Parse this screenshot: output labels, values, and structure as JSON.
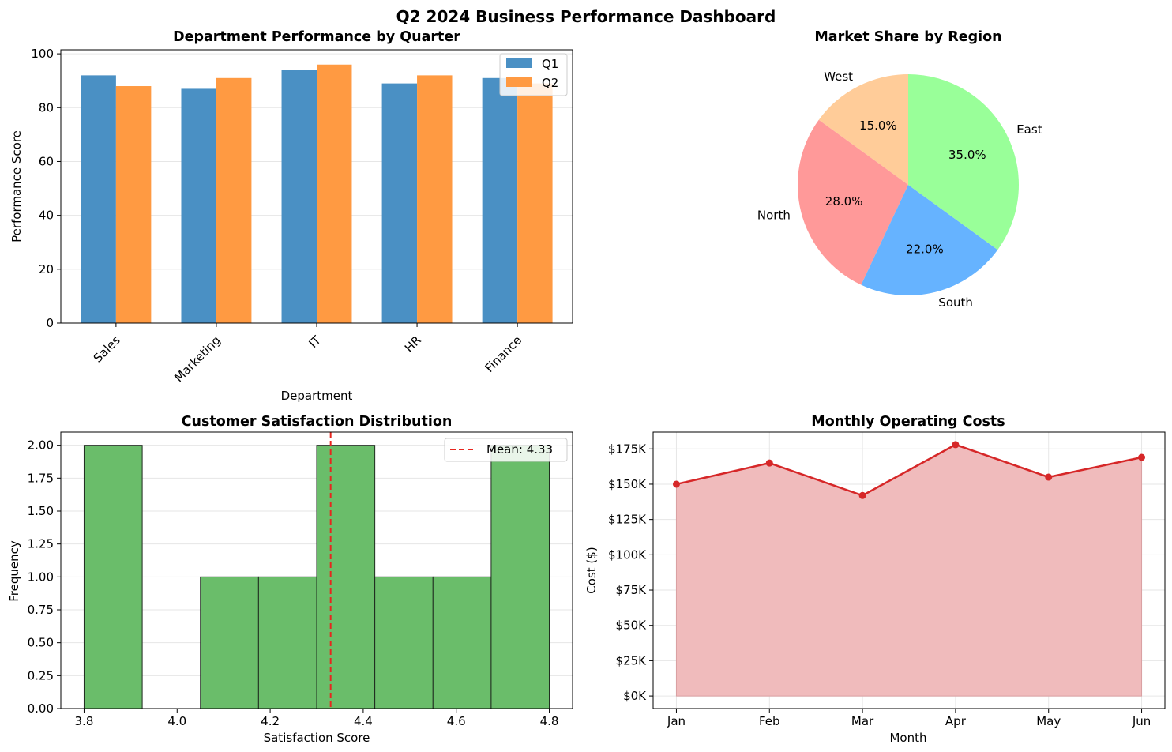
{
  "dashboard": {
    "title": "Q2 2024 Business Performance Dashboard"
  },
  "chart_data": [
    {
      "type": "bar",
      "title": "Department Performance by Quarter",
      "xlabel": "Department",
      "ylabel": "Performance Score",
      "categories": [
        "Sales",
        "Marketing",
        "IT",
        "HR",
        "Finance"
      ],
      "series": [
        {
          "name": "Q1",
          "values": [
            92,
            87,
            94,
            89,
            91
          ],
          "color": "#4a90c4"
        },
        {
          "name": "Q2",
          "values": [
            88,
            91,
            96,
            92,
            89
          ],
          "color": "#ff9a42"
        }
      ],
      "ylim": [
        0,
        100
      ],
      "yticks": [
        "0",
        "20",
        "40",
        "60",
        "80",
        "100"
      ],
      "grid": "horizontal",
      "legend": "top-right"
    },
    {
      "type": "pie",
      "title": "Market Share by Region",
      "slices": [
        {
          "label": "West",
          "value": 15.0,
          "pct": "15.0%",
          "color": "#ffcc99"
        },
        {
          "label": "North",
          "value": 28.0,
          "pct": "28.0%",
          "color": "#ff9999"
        },
        {
          "label": "South",
          "value": 22.0,
          "pct": "22.0%",
          "color": "#66b3ff"
        },
        {
          "label": "East",
          "value": 35.0,
          "pct": "35.0%",
          "color": "#99ff99"
        }
      ]
    },
    {
      "type": "bar",
      "subtype": "histogram",
      "title": "Customer Satisfaction Distribution",
      "xlabel": "Satisfaction Score",
      "ylabel": "Frequency",
      "bins": [
        {
          "from": 3.8,
          "to": 3.925,
          "count": 2
        },
        {
          "from": 3.925,
          "to": 4.05,
          "count": 0
        },
        {
          "from": 4.05,
          "to": 4.175,
          "count": 1
        },
        {
          "from": 4.175,
          "to": 4.3,
          "count": 1
        },
        {
          "from": 4.3,
          "to": 4.425,
          "count": 2
        },
        {
          "from": 4.425,
          "to": 4.55,
          "count": 1
        },
        {
          "from": 4.55,
          "to": 4.675,
          "count": 1
        },
        {
          "from": 4.675,
          "to": 4.8,
          "count": 2
        }
      ],
      "mean": 4.33,
      "mean_label": "Mean: 4.33",
      "xticks": [
        "3.8",
        "4.0",
        "4.2",
        "4.4",
        "4.6",
        "4.8"
      ],
      "yticks": [
        "0.00",
        "0.25",
        "0.50",
        "0.75",
        "1.00",
        "1.25",
        "1.50",
        "1.75",
        "2.00"
      ],
      "ylim": [
        0,
        2.1
      ],
      "xlim": [
        3.75,
        4.85
      ],
      "grid": "horizontal",
      "legend": "top-right",
      "bar_color": "#6abd6a"
    },
    {
      "type": "area",
      "title": "Monthly Operating Costs",
      "xlabel": "Month",
      "ylabel": "Cost ($)",
      "categories": [
        "Jan",
        "Feb",
        "Mar",
        "Apr",
        "May",
        "Jun"
      ],
      "values": [
        150000,
        165000,
        142000,
        178000,
        155000,
        169000
      ],
      "yticks": [
        "$0K",
        "$25K",
        "$50K",
        "$75K",
        "$100K",
        "$125K",
        "$150K",
        "$175K"
      ],
      "ylim": [
        -8900,
        186900
      ],
      "grid": "both",
      "line_color": "#d62728",
      "fill_color": "#f0bbbc"
    }
  ]
}
